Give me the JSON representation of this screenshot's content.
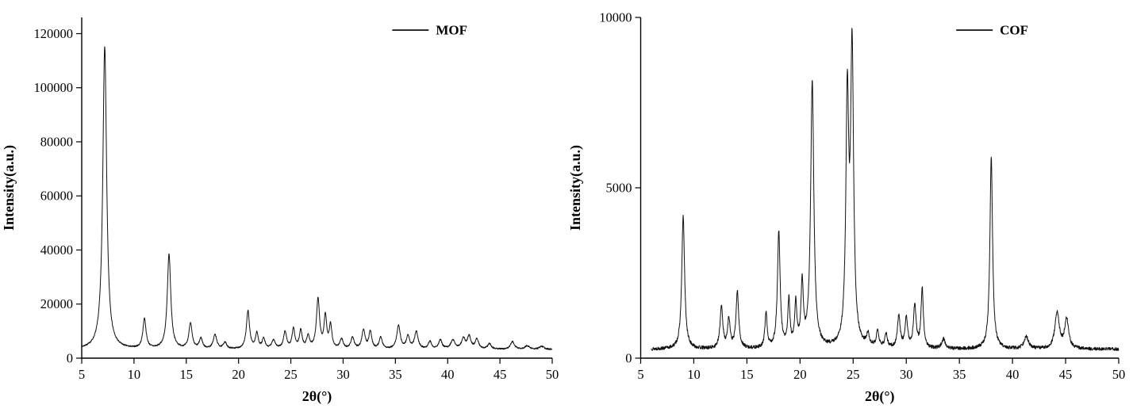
{
  "page": {
    "background": "#ffffff"
  },
  "chart_data": [
    {
      "type": "line",
      "panel": "left",
      "title": "",
      "xlabel": "2θ(°)",
      "ylabel": "Intensity(a.u.)",
      "xlim": [
        5,
        50
      ],
      "ylim": [
        0,
        126000
      ],
      "xticks": [
        5,
        10,
        15,
        20,
        25,
        30,
        35,
        40,
        45,
        50
      ],
      "yticks": [
        0,
        20000,
        40000,
        60000,
        80000,
        100000,
        120000
      ],
      "legend": [
        "MOF"
      ],
      "line_color": "#111111",
      "grid": false,
      "legend_position": "top-right",
      "seed": 7,
      "baseline": 3200,
      "noise": 260,
      "x_start": 5,
      "peaks": [
        [
          7.2,
          112000,
          0.22
        ],
        [
          11.0,
          11000,
          0.18
        ],
        [
          13.35,
          35000,
          0.2
        ],
        [
          15.4,
          9500,
          0.18
        ],
        [
          16.4,
          3800,
          0.18
        ],
        [
          17.75,
          5200,
          0.2
        ],
        [
          18.7,
          2400,
          0.18
        ],
        [
          20.9,
          14000,
          0.18
        ],
        [
          21.75,
          5600,
          0.16
        ],
        [
          22.4,
          3600,
          0.16
        ],
        [
          23.35,
          3200,
          0.2
        ],
        [
          24.45,
          6200,
          0.18
        ],
        [
          25.25,
          7200,
          0.16
        ],
        [
          25.95,
          6600,
          0.16
        ],
        [
          26.65,
          4600,
          0.16
        ],
        [
          27.6,
          18200,
          0.18
        ],
        [
          28.3,
          11800,
          0.15
        ],
        [
          28.8,
          8600,
          0.15
        ],
        [
          29.85,
          3600,
          0.18
        ],
        [
          30.9,
          4200,
          0.18
        ],
        [
          31.95,
          7000,
          0.18
        ],
        [
          32.6,
          6400,
          0.16
        ],
        [
          33.6,
          4200,
          0.18
        ],
        [
          35.3,
          8600,
          0.2
        ],
        [
          36.2,
          4600,
          0.18
        ],
        [
          37.0,
          6400,
          0.2
        ],
        [
          38.3,
          2800,
          0.18
        ],
        [
          39.3,
          3200,
          0.2
        ],
        [
          40.5,
          3200,
          0.25
        ],
        [
          41.5,
          3800,
          0.2
        ],
        [
          42.05,
          4600,
          0.2
        ],
        [
          42.8,
          3600,
          0.2
        ],
        [
          44.0,
          2000,
          0.2
        ],
        [
          46.2,
          2800,
          0.22
        ],
        [
          47.6,
          1300,
          0.25
        ],
        [
          49.0,
          1100,
          0.25
        ]
      ]
    },
    {
      "type": "line",
      "panel": "right",
      "title": "",
      "xlabel": "2θ(°)",
      "ylabel": "Intensity(a.u.)",
      "xlim": [
        5,
        50
      ],
      "ylim": [
        0,
        10000
      ],
      "xticks": [
        5,
        10,
        15,
        20,
        25,
        30,
        35,
        40,
        45,
        50
      ],
      "yticks": [
        0,
        5000,
        10000
      ],
      "legend": [
        "COF"
      ],
      "line_color": "#111111",
      "grid": false,
      "legend_position": "top-right",
      "seed": 13,
      "baseline": 260,
      "noise": 50,
      "x_start": 6,
      "peaks": [
        [
          9.0,
          3900,
          0.16
        ],
        [
          12.6,
          1250,
          0.15
        ],
        [
          13.3,
          850,
          0.14
        ],
        [
          14.1,
          1650,
          0.15
        ],
        [
          16.8,
          1050,
          0.12
        ],
        [
          18.0,
          3400,
          0.15
        ],
        [
          18.95,
          1350,
          0.12
        ],
        [
          19.6,
          1250,
          0.12
        ],
        [
          20.2,
          1850,
          0.13
        ],
        [
          21.15,
          7800,
          0.18
        ],
        [
          24.45,
          7100,
          0.16
        ],
        [
          24.9,
          8600,
          0.17
        ],
        [
          26.4,
          350,
          0.15
        ],
        [
          27.3,
          450,
          0.15
        ],
        [
          28.1,
          380,
          0.15
        ],
        [
          29.3,
          950,
          0.15
        ],
        [
          30.0,
          850,
          0.15
        ],
        [
          30.8,
          1250,
          0.15
        ],
        [
          31.5,
          1750,
          0.13
        ],
        [
          33.5,
          280,
          0.2
        ],
        [
          38.0,
          5650,
          0.15
        ],
        [
          41.3,
          350,
          0.25
        ],
        [
          44.2,
          1050,
          0.25
        ],
        [
          45.1,
          850,
          0.22
        ]
      ]
    }
  ]
}
